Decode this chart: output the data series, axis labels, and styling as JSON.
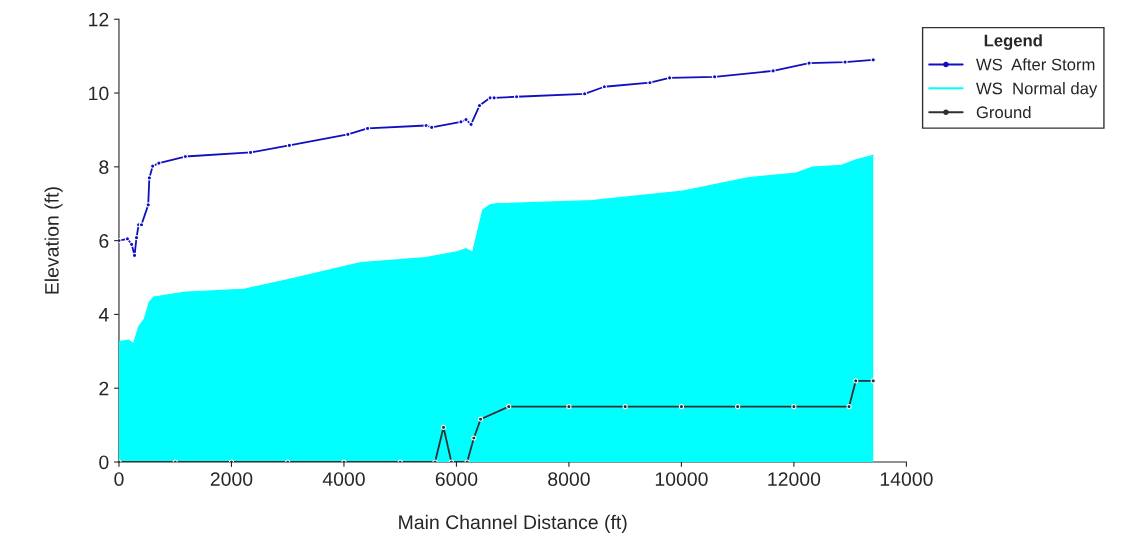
{
  "chart_data": {
    "type": "line",
    "xlabel": "Main Channel Distance (ft)",
    "ylabel": "Elevation (ft)",
    "legend_title": "Legend",
    "legend": "top right",
    "grid": false,
    "xlim": [
      0,
      14000
    ],
    "xticks": [
      0,
      2000,
      4000,
      6000,
      8000,
      10000,
      12000,
      14000
    ],
    "ylim": [
      0,
      12
    ],
    "yticks": [
      0,
      2,
      4,
      6,
      8,
      10,
      12
    ],
    "series": [
      {
        "name": "WS  After Storm",
        "color": "#1010c0",
        "marker": "circle",
        "x": [
          0,
          150,
          225,
          277,
          312,
          350,
          400,
          520,
          540,
          600,
          710,
          1180,
          2340,
          3030,
          4070,
          4420,
          5460,
          5560,
          6080,
          6170,
          6260,
          6410,
          6600,
          6670,
          7070,
          8280,
          8630,
          9440,
          9790,
          10590,
          11630,
          12270,
          12910,
          13410
        ],
        "values": [
          6.0,
          6.05,
          5.9,
          5.6,
          6.08,
          6.43,
          6.43,
          6.97,
          7.7,
          8.02,
          8.1,
          8.28,
          8.39,
          8.58,
          8.88,
          9.04,
          9.12,
          9.07,
          9.22,
          9.28,
          9.15,
          9.66,
          9.87,
          9.87,
          9.9,
          9.98,
          10.17,
          10.28,
          10.41,
          10.44,
          10.6,
          10.81,
          10.84,
          10.9
        ]
      },
      {
        "name": "WS  Normal day",
        "type": "area",
        "color": "#00ffff",
        "x": [
          0,
          170,
          260,
          350,
          450,
          540,
          620,
          1180,
          2220,
          3030,
          4300,
          5460,
          6030,
          6170,
          6290,
          6470,
          6600,
          6720,
          8400,
          10020,
          11180,
          12040,
          12330,
          12850,
          13090,
          13410
        ],
        "values": [
          3.26,
          3.3,
          3.2,
          3.66,
          3.87,
          4.33,
          4.47,
          4.6,
          4.68,
          4.95,
          5.4,
          5.54,
          5.7,
          5.78,
          5.68,
          6.83,
          6.97,
          7.0,
          7.08,
          7.34,
          7.7,
          7.83,
          7.99,
          8.04,
          8.18,
          8.31
        ]
      },
      {
        "name": "Ground",
        "color": "#303030",
        "marker": "circle",
        "x": [
          0,
          1000,
          2000,
          3000,
          4000,
          5000,
          5620,
          5770,
          5910,
          6190,
          6310,
          6430,
          6930,
          8000,
          9000,
          10000,
          11000,
          12000,
          12980,
          13100,
          13410
        ],
        "values": [
          0,
          0,
          0,
          0,
          0,
          0,
          0,
          0.94,
          0,
          0,
          0.65,
          1.16,
          1.5,
          1.5,
          1.5,
          1.5,
          1.5,
          1.5,
          1.5,
          2.2,
          2.2
        ]
      }
    ]
  }
}
